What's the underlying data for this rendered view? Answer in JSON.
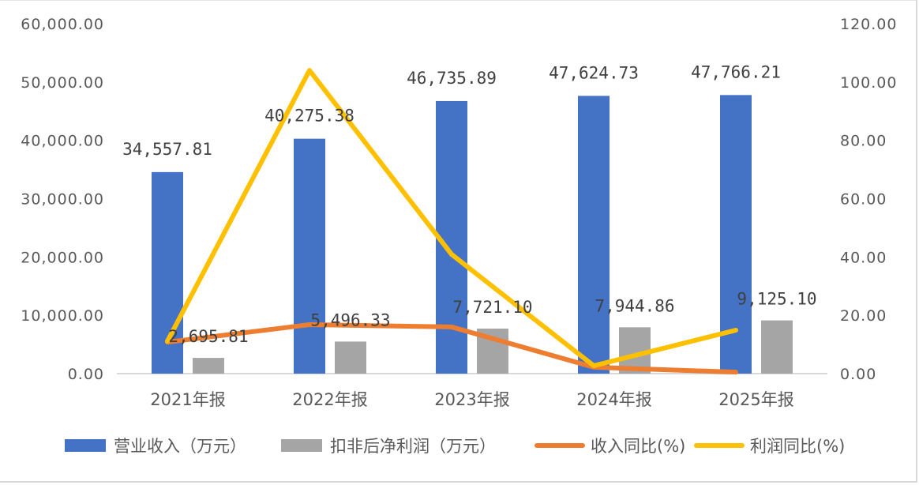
{
  "chart_data": {
    "type": "bar+line",
    "title": "",
    "categories": [
      "2021年报",
      "2022年报",
      "2023年报",
      "2024年报",
      "2025年报"
    ],
    "series": [
      {
        "name": "营业收入（万元）",
        "type": "bar",
        "axis": "left",
        "color": "#4472C4",
        "values": [
          34557.81,
          40275.38,
          46735.89,
          47624.73,
          47766.21
        ],
        "labels": [
          "34,557.81",
          "40,275.38",
          "46,735.89",
          "47,624.73",
          "47,766.21"
        ]
      },
      {
        "name": "扣非后净利润（万元）",
        "type": "bar",
        "axis": "left",
        "color": "#A5A5A5",
        "values": [
          2695.81,
          5496.33,
          7721.1,
          7944.86,
          9125.1
        ],
        "labels": [
          "2,695.81",
          "5,496.33",
          "7,721.10",
          "7,944.86",
          "9,125.10"
        ]
      },
      {
        "name": "收入同比(%)",
        "type": "line",
        "axis": "right",
        "color": "#ED7D31",
        "values": [
          10.8,
          16.8,
          16.0,
          2.2,
          0.5
        ]
      },
      {
        "name": "利润同比(%)",
        "type": "line",
        "axis": "right",
        "color": "#FFC000",
        "values": [
          11.1,
          104.0,
          40.9,
          2.7,
          14.9
        ]
      }
    ],
    "left_axis": {
      "ylim": [
        0,
        60000
      ],
      "ticks": [
        "0.00",
        "10,000.00",
        "20,000.00",
        "30,000.00",
        "40,000.00",
        "50,000.00",
        "60,000.00"
      ]
    },
    "right_axis": {
      "ylim": [
        0,
        120
      ],
      "ticks": [
        "0.00",
        "20.00",
        "40.00",
        "60.00",
        "80.00",
        "100.00",
        "120.00"
      ]
    },
    "xlabel": "",
    "ylabel": "",
    "y2label": "",
    "grid": false,
    "legend_position": "bottom"
  }
}
